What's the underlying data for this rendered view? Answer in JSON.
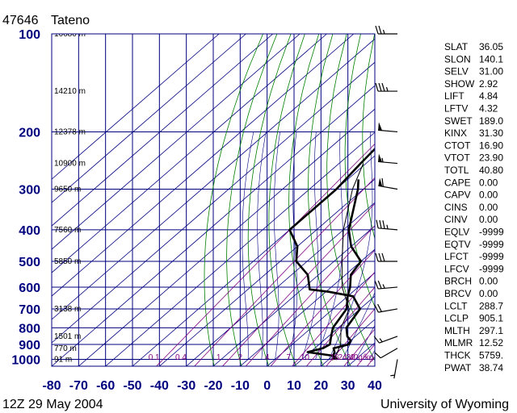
{
  "header": {
    "station_id": "47646",
    "station_name": "Tateno"
  },
  "footer": {
    "date": "12Z 29 May 2004",
    "source": "University of Wyoming"
  },
  "chart_data": {
    "type": "line",
    "pressure_levels": [
      100,
      200,
      300,
      400,
      500,
      600,
      700,
      800,
      900,
      1000
    ],
    "x_ticks": [
      -80,
      -70,
      -60,
      -50,
      -40,
      -30,
      -20,
      -10,
      0,
      10,
      20,
      30,
      40
    ],
    "xlim": [
      -80,
      40
    ],
    "ylim": [
      1050,
      100
    ],
    "grid": true,
    "height_labels": [
      {
        "p": 100,
        "label": "16680 m"
      },
      {
        "p": 150,
        "label": "14210 m"
      },
      {
        "p": 200,
        "label": "12378 m"
      },
      {
        "p": 250,
        "label": "10900 m"
      },
      {
        "p": 300,
        "label": "9650 m"
      },
      {
        "p": 400,
        "label": "7560 m"
      },
      {
        "p": 500,
        "label": "5850 m"
      },
      {
        "p": 700,
        "label": "3138 m"
      },
      {
        "p": 850,
        "label": "1501 m"
      },
      {
        "p": 925,
        "label": "770 m"
      },
      {
        "p": 1000,
        "label": "91 m"
      }
    ],
    "mixing_ratio_labels": [
      {
        "x": -42,
        "label": "0.1"
      },
      {
        "x": -32,
        "label": "0.4"
      },
      {
        "x": -18,
        "label": "1"
      },
      {
        "x": -10,
        "label": "2"
      },
      {
        "x": 0,
        "label": "4"
      },
      {
        "x": 8,
        "label": "7"
      },
      {
        "x": 14,
        "label": "10"
      },
      {
        "x": 25,
        "label": "16"
      },
      {
        "x": 28,
        "label": "24"
      },
      {
        "x": 31,
        "label": "32"
      },
      {
        "x": 35,
        "label": "40g/kg"
      }
    ],
    "series": [
      {
        "name": "",
        "color": "#000000",
        "points": [
          [
            21,
            1000
          ],
          [
            22,
            990
          ],
          [
            20,
            975
          ],
          [
            19,
            950
          ],
          [
            17,
            925
          ],
          [
            21,
            900
          ],
          [
            20,
            875
          ],
          [
            17,
            850
          ],
          [
            13,
            800
          ],
          [
            10,
            700
          ],
          [
            2,
            640
          ],
          [
            -9,
            620
          ],
          [
            -17,
            610
          ],
          [
            -24,
            550
          ],
          [
            -34,
            500
          ],
          [
            -40,
            450
          ],
          [
            -50,
            400
          ],
          [
            -50,
            350
          ],
          [
            -50,
            300
          ],
          [
            -52,
            250
          ],
          [
            -54,
            200
          ],
          [
            -58,
            150
          ],
          [
            -67,
            120
          ],
          [
            -72,
            100
          ]
        ]
      },
      {
        "name": "",
        "color": "#000000",
        "points": [
          [
            23,
            1000
          ],
          [
            20,
            975
          ],
          [
            9,
            950
          ],
          [
            13,
            925
          ],
          [
            14,
            900
          ],
          [
            11,
            850
          ],
          [
            8,
            800
          ],
          [
            5,
            700
          ],
          [
            0,
            640
          ],
          [
            -3,
            600
          ],
          [
            -8,
            550
          ],
          [
            -10,
            500
          ],
          [
            -20,
            450
          ],
          [
            -28,
            400
          ],
          [
            -42,
            300
          ],
          [
            -46,
            280
          ]
        ]
      },
      {
        "name": "",
        "color": "#000000",
        "points": [
          [
            22,
            1000
          ],
          [
            18,
            900
          ],
          [
            11,
            800
          ],
          [
            6,
            700
          ],
          [
            -6,
            600
          ],
          [
            -17,
            500
          ],
          [
            -30,
            400
          ],
          [
            -44,
            300
          ],
          [
            -51,
            250
          ]
        ]
      }
    ],
    "wind_barbs": [
      {
        "p": 1000,
        "dir": 190,
        "kt": 5
      },
      {
        "p": 925,
        "dir": 240,
        "kt": 10
      },
      {
        "p": 850,
        "dir": 250,
        "kt": 15
      },
      {
        "p": 700,
        "dir": 260,
        "kt": 20
      },
      {
        "p": 600,
        "dir": 265,
        "kt": 25
      },
      {
        "p": 500,
        "dir": 270,
        "kt": 30
      },
      {
        "p": 400,
        "dir": 275,
        "kt": 35
      },
      {
        "p": 300,
        "dir": 280,
        "kt": 60
      },
      {
        "p": 250,
        "dir": 275,
        "kt": 55
      },
      {
        "p": 200,
        "dir": 275,
        "kt": 50
      },
      {
        "p": 150,
        "dir": 270,
        "kt": 35
      },
      {
        "p": 100,
        "dir": 270,
        "kt": 25
      }
    ]
  },
  "indices": [
    {
      "name": "SLAT",
      "value": "36.05"
    },
    {
      "name": "SLON",
      "value": "140.1"
    },
    {
      "name": "SELV",
      "value": "31.00"
    },
    {
      "name": "SHOW",
      "value": "2.92"
    },
    {
      "name": "LIFT",
      "value": "4.84"
    },
    {
      "name": "LFTV",
      "value": "4.32"
    },
    {
      "name": "SWET",
      "value": "189.0"
    },
    {
      "name": "KINX",
      "value": "31.30"
    },
    {
      "name": "CTOT",
      "value": "16.90"
    },
    {
      "name": "VTOT",
      "value": "23.90"
    },
    {
      "name": "TOTL",
      "value": "40.80"
    },
    {
      "name": "CAPE",
      "value": "0.00"
    },
    {
      "name": "CAPV",
      "value": "0.00"
    },
    {
      "name": "CINS",
      "value": "0.00"
    },
    {
      "name": "CINV",
      "value": "0.00"
    },
    {
      "name": "EQLV",
      "value": "-9999"
    },
    {
      "name": "EQTV",
      "value": "-9999"
    },
    {
      "name": "LFCT",
      "value": "-9999"
    },
    {
      "name": "LFCV",
      "value": "-9999"
    },
    {
      "name": "BRCH",
      "value": "0.00"
    },
    {
      "name": "BRCV",
      "value": "0.00"
    },
    {
      "name": "LCLT",
      "value": "288.7"
    },
    {
      "name": "LCLP",
      "value": "905.1"
    },
    {
      "name": "MLTH",
      "value": "297.1"
    },
    {
      "name": "MLMR",
      "value": "12.52"
    },
    {
      "name": "THCK",
      "value": "5759."
    },
    {
      "name": "PWAT",
      "value": "38.74"
    }
  ],
  "colors": {
    "grid": "#00007f",
    "isotherm": "#00007f",
    "dry_adiabat": "#007f00",
    "moist_adiabat": "#00007f",
    "mixing_ratio": "#7f007f",
    "profile": "#000000"
  }
}
